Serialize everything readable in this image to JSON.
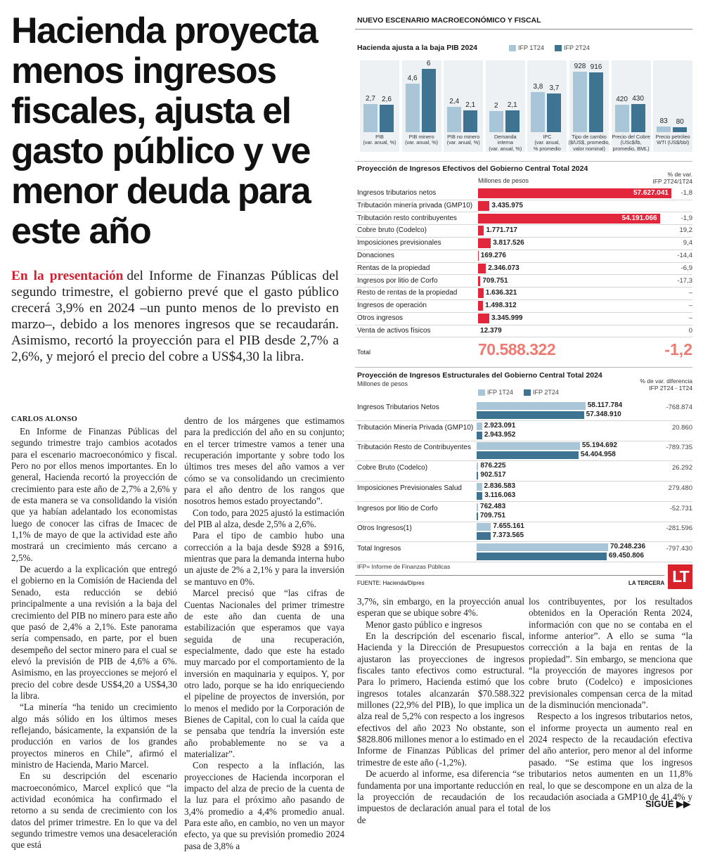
{
  "article": {
    "title_lines": [
      "Hacienda proyecta",
      "menos ingresos",
      "fiscales, ajusta el",
      "gasto público y ve",
      "menor deuda para",
      "este año"
    ],
    "lead_highlight": "En la presentación",
    "lead_text": "del Informe de Finanzas Públicas del segundo trimestre, el gobierno prevé que el gasto público crecerá 3,9% en 2024 –un punto menos de lo previsto en marzo–, debido a los menores ingresos que se recaudarán. Asimismo, recortó la proyección para el PIB desde 2,7% a 2,6%, y mejoró el precio del cobre a US$4,30 la libra.",
    "byline": "CARLOS ALONSO",
    "columns": [
      [
        "En Informe de Finanzas Públicas del segundo trimestre trajo cambios acotados para el escenario macroeconómico y fiscal. Pero no por ellos menos importantes. En lo general, Hacienda recortó la proyección de crecimiento para este año de 2,7% a 2,6% y de esta manera se va consolidando la visión que ya habían adelantado los economistas luego de conocer las cifras de Imacec de 1,1% de mayo de que la actividad este año mostrará un crecimiento más cercano a 2,5%.",
        "De acuerdo a la explicación que entregó el gobierno en la Comisión de Hacienda del Senado, esta reducción se debió principalmente a una revisión a la baja del crecimiento del PIB no minero para este año que pasó de 2,4% a 2,1%. Este panorama sería compensado, en parte, por el buen desempeño del sector minero para el cual se elevó la previsión de PIB de 4,6% a 6%. Asimismo, en las proyecciones se mejoró el precio del cobre desde US$4,20 a US$4,30 la libra.",
        "“La minería “ha tenido un crecimiento algo más sólido en los últimos meses reflejando, básicamente, la expansión de la producción en varios de los grandes proyectos mineros en Chile”, afirmó el ministro de Hacienda, Mario Marcel.",
        "En su descripción del escenario macroeconómico, Marcel explicó que “la actividad económica ha confirmado el retorno a su senda de crecimiento con los datos del primer trimestre. En lo que va del segundo trimestre vemos una desaceleración que está"
      ],
      [
        "dentro de los márgenes que estimamos para la predicción del año en su conjunto; en el tercer trimestre vamos a tener una recuperación importante y sobre todo los últimos tres meses del año vamos a ver cómo se va consolidando un crecimiento para el año dentro de los rangos que nosotros hemos estado proyectando”.",
        "Con todo, para 2025 ajustó la estimación del PIB al alza, desde 2,5% a 2,6%.",
        "Para el tipo de cambio hubo una corrección a la baja desde $928 a $916, mientras que para la demanda interna hubo un ajuste de 2% a 2,1% y para la inversión se mantuvo en 0%.",
        "Marcel precisó que “las cifras de Cuentas Nacionales del primer trimestre de este año dan cuenta de una estabilización que esperamos que vaya seguida de una recuperación, especialmente, dado que este ha estado muy marcado por el comportamiento de la inversión en maquinaria y equipos. Y, por otro lado, porque se ha ido enriqueciendo el pipeline de proyectos de inversión, por lo menos el medido por la Corporación de Bienes de Capital, con lo cual la caída que se pensaba que tendría la inversión este año probablemente no se va a materializar”.",
        "Con respecto a la inflación, las proyecciones de Hacienda incorporan el impacto del alza de precio de la cuenta de la luz para el próximo año pasando de 3,4% promedio a 4,4% promedio anual. Para este año, en cambio, no ven un mayor efecto, ya que su previsión promedio 2024 pasa de 3,8% a"
      ],
      [
        "3,7%, sin embargo, en la proyección anual esperan que se ubique sobre 4%.",
        "Menor gasto público e ingresos",
        "En la descripción del escenario fiscal, Hacienda y la Dirección de Presupuestos ajustaron las proyecciones de ingresos fiscales tanto efectivos como estructural. Para lo primero, Hacienda estimó que los ingresos totales alcanzarán $70.588.322 millones (22,9% del PIB), lo que implica un alza real de 5,2% con respecto a los ingresos efectivos del año 2023 No obstante, son $828.806 millones menor a lo estimado en el Informe de Finanzas Públicas del primer trimestre de este año (-1,2%).",
        "De acuerdo al informe, esa diferencia “se fundamenta por una importante reducción en la proyección de recaudación de los impuestos de declaración anual para el total de"
      ],
      [
        "los contribuyentes, por los resultados obtenidos en la Operación Renta 2024, información con que no se contaba en el informe anterior”. A ello se suma “la corrección a la baja en rentas de la propiedad”. Sin embargo, se menciona que “la proyección de mayores ingresos por cobre bruto (Codelco) e imposiciones previsionales compensan cerca de la mitad de la disminución mencionada”.",
        "Respecto a los ingresos tributarios netos, el informe proyecta un aumento real en 2024 respecto de la recaudación efectiva del año anterior, pero menor al del informe pasado. “Se estima que los ingresos tributarios netos aumenten en un 11,8% real, lo que se descompone en un alza de la recaudación asociada a GMP10 de 41,4% y de los"
      ]
    ],
    "next": "SIGUE ▶▶"
  },
  "infographic": {
    "header": "NUEVO ESCENARIO MACROECONÓMICO Y FISCAL",
    "note": "IFP= Informe de Finanzas Públicas",
    "source": "FUENTE: Hacienda/Dipres",
    "brand": "LA TERCERA",
    "logo": "LT"
  },
  "chart_data": [
    {
      "type": "bar",
      "title": "Hacienda ajusta a la baja PIB 2024",
      "categories": [
        "PIB\n(var. anual, %)",
        "PIB minero\n(var. anual, %)",
        "PIB no minero\n(var. anual, %)",
        "Demanda\ninterna\n(var. anual, %)",
        "IPC\n(var. anual,\n% promedio",
        "Tipo de cambio\n($/US$, promedio,\nvalor nominal)",
        "Precio del Cobre\n(USc$/lb,\npromedio, BML)",
        "Precio petróleo\nWTI (US$/bbl)"
      ],
      "series": [
        {
          "name": "IFP 1T24",
          "color": "#a9c6d8",
          "values": [
            2.7,
            4.6,
            2.4,
            2,
            3.8,
            928,
            420,
            83
          ],
          "value_labels": [
            "2,7",
            "4,6",
            "2,4",
            "2",
            "3,8",
            "928",
            "420",
            "83"
          ]
        },
        {
          "name": "IFP 2T24",
          "color": "#3f7392",
          "values": [
            2.6,
            6,
            2.1,
            2.1,
            3.7,
            916,
            430,
            80
          ],
          "value_labels": [
            "2,6",
            "6",
            "2,1",
            "2,1",
            "3,7",
            "916",
            "430",
            "80"
          ]
        }
      ]
    },
    {
      "type": "hbar",
      "title": "Proyección de Ingresos Efectivos del Gobierno Central Total 2024",
      "unit_label": "Millones de pesos",
      "change_label": "% de var.\nIFP 2T24/1T24",
      "color": "#e2273d",
      "categories": [
        "Ingresos tributarios netos",
        "Tributación minería privada (GMP10)",
        "Tributación resto contribuyentes",
        "Cobre bruto (Codelco)",
        "Imposiciones previsionales",
        "Donaciones",
        "Rentas de la propiedad",
        "Ingresos por litio de Corfo",
        "Resto de rentas de la propiedad",
        "Ingresos de operación",
        "Otros ingresos",
        "Venta de activos físicos"
      ],
      "values": [
        57627041,
        3435975,
        54191066,
        1771717,
        3817526,
        169276,
        2346073,
        709751,
        1636321,
        1498312,
        3345999,
        12379
      ],
      "value_labels": [
        "57.627.041",
        "3.435.975",
        "54.191.066",
        "1.771.717",
        "3.817.526",
        "169.276",
        "2.346.073",
        "709.751",
        "1.636.321",
        "1.498.312",
        "3.345.999",
        "12.379"
      ],
      "changes": [
        "-1,8",
        null,
        "-1,9",
        "19,2",
        "9,4",
        "-14,4",
        "-6,9",
        "-17,3",
        "–",
        "–",
        "–",
        "0"
      ],
      "total": {
        "label": "Total",
        "value": "70.588.322",
        "change": "-1,2"
      }
    },
    {
      "type": "hbar",
      "title": "Proyección de Ingresos Estructurales del Gobierno Central Total 2024",
      "unit_label": "Millones de pesos",
      "change_label": "% de var. diferencia\nIFP 2T24 - 1T24",
      "categories": [
        "Ingresos Tributarios Netos",
        "Tributación Minería Privada (GMP10)",
        "Tributación Resto de Contribuyentes",
        "Cobre Bruto (Codelco)",
        "Imposiciones Previsionales Salud",
        "Ingresos por litio de Corfo",
        "Otros Ingresos(1)",
        "Total Ingresos"
      ],
      "series": [
        {
          "name": "IFP 1T24",
          "color": "#a9c6d8",
          "values": [
            58117784,
            2923091,
            55194692,
            876225,
            2836583,
            762483,
            7655161,
            70248236
          ],
          "value_labels": [
            "58.117.784",
            "2.923.091",
            "55.194.692",
            "876.225",
            "2.836.583",
            "762.483",
            "7.655.161",
            "70.248.236"
          ]
        },
        {
          "name": "IFP 2T24",
          "color": "#3f7392",
          "values": [
            57348910,
            2943952,
            54404958,
            902517,
            3116063,
            709751,
            7373565,
            69450806
          ],
          "value_labels": [
            "57.348.910",
            "2.943.952",
            "54.404.958",
            "902.517",
            "3.116.063",
            "709.751",
            "7.373.565",
            "69.450.806"
          ]
        }
      ],
      "changes": [
        "-768.874",
        "20.860",
        "-789.735",
        "26.292",
        "279.480",
        "-52.731",
        "-281.596",
        "-797.430"
      ]
    }
  ]
}
